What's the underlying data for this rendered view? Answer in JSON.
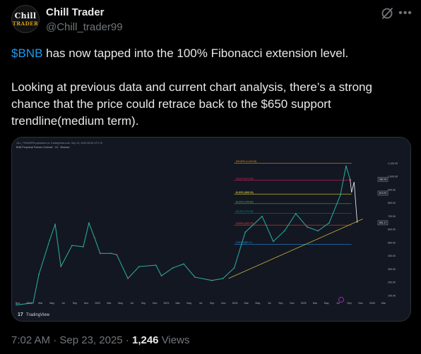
{
  "author": {
    "avatar_line1": "Chill",
    "avatar_line2": "TRADER",
    "name": "Chill Trader",
    "handle": "@Chill_trader99"
  },
  "header_icons": [
    "grok-icon",
    "more-icon"
  ],
  "tweet": {
    "cashtag": "$BNB",
    "line1_rest": " has now tapped into the 100% Fibonacci extension level.",
    "paragraph2": "Looking at previous data and current chart analysis, there’s a strong chance that the price could retrace back to the $650 support trendline(medium term)."
  },
  "meta": {
    "time": "7:02 AM",
    "sep1": " · ",
    "date": "Sep 23, 2025",
    "sep2": " · ",
    "views_count": "1,246",
    "views_label": " Views"
  },
  "chart_data": {
    "type": "line",
    "header": "BNB Perpetual Futures Contract · 1D · Binance",
    "watermark_top": "JILL_TRADERR published on TradingView.com, Sep 23, 2025 06:59 UTC+8",
    "brand": "TradingView",
    "colors": {
      "background": "#131722",
      "bull": "#26a69a",
      "bear": "#ef5350",
      "trendline": "#c8b43a",
      "fib_100": "#ff9800",
      "fib_786": "#e91e63",
      "fib_618": "#ffeb3b",
      "fib_50": "#4caf50",
      "fib_382": "#009688",
      "fib_236": "#f44336",
      "fib_0": "#2196f3"
    },
    "price_axis": [
      "1,100.00",
      "1,000.00",
      "900.00",
      "800.00",
      "700.00",
      "600.00",
      "500.00",
      "400.00",
      "300.00",
      "200.00",
      "100.00"
    ],
    "ylim": [
      80,
      1200
    ],
    "time_axis": [
      "Nov",
      "2021",
      "Mar",
      "May",
      "Jul",
      "Sep",
      "Nov",
      "2022",
      "Mar",
      "May",
      "Jul",
      "Sep",
      "Nov",
      "2023",
      "Mar",
      "May",
      "Jul",
      "Sep",
      "Nov",
      "2024",
      "Mar",
      "May",
      "Jul",
      "Sep",
      "Nov",
      "2025",
      "Mar",
      "May",
      "Jul",
      "Sep",
      "Nov",
      "2026",
      "Mar"
    ],
    "fib_levels": [
      {
        "label": "100.00% (1,102.34)",
        "value": 1102.34
      },
      {
        "label": "78.60% (973.53)",
        "value": 973.53
      },
      {
        "label": "61.80% (868.34)",
        "value": 868.34
      },
      {
        "label": "50.00% (795.89)",
        "value": 795.89
      },
      {
        "label": "38.20% (723.39)",
        "value": 723.39
      },
      {
        "label": "23.60% (633.79)",
        "value": 633.79
      },
      {
        "label": "0.00% (489.17)",
        "value": 489.17
      }
    ],
    "price_tags": [
      {
        "label": "980.44",
        "value": 980.44
      },
      {
        "label": "874.97",
        "value": 874.97
      },
      {
        "label": "651.17",
        "value": 651.17
      }
    ],
    "price_series": [
      {
        "t": "2020-10",
        "close": 30
      },
      {
        "t": "2021-01",
        "close": 45
      },
      {
        "t": "2021-02",
        "close": 260
      },
      {
        "t": "2021-04",
        "close": 520
      },
      {
        "t": "2021-05",
        "close": 640
      },
      {
        "t": "2021-06",
        "close": 320
      },
      {
        "t": "2021-08",
        "close": 480
      },
      {
        "t": "2021-10",
        "close": 470
      },
      {
        "t": "2021-11",
        "close": 650
      },
      {
        "t": "2021-12",
        "close": 540
      },
      {
        "t": "2022-01",
        "close": 420
      },
      {
        "t": "2022-03",
        "close": 420
      },
      {
        "t": "2022-04",
        "close": 410
      },
      {
        "t": "2022-06",
        "close": 230
      },
      {
        "t": "2022-08",
        "close": 320
      },
      {
        "t": "2022-11",
        "close": 330
      },
      {
        "t": "2022-12",
        "close": 250
      },
      {
        "t": "2023-02",
        "close": 310
      },
      {
        "t": "2023-04",
        "close": 340
      },
      {
        "t": "2023-06",
        "close": 240
      },
      {
        "t": "2023-09",
        "close": 215
      },
      {
        "t": "2023-11",
        "close": 230
      },
      {
        "t": "2024-01",
        "close": 310
      },
      {
        "t": "2024-03",
        "close": 580
      },
      {
        "t": "2024-06",
        "close": 700
      },
      {
        "t": "2024-08",
        "close": 510
      },
      {
        "t": "2024-10",
        "close": 590
      },
      {
        "t": "2024-12",
        "close": 720
      },
      {
        "t": "2025-02",
        "close": 620
      },
      {
        "t": "2025-04",
        "close": 590
      },
      {
        "t": "2025-06",
        "close": 650
      },
      {
        "t": "2025-08",
        "close": 860
      },
      {
        "t": "2025-09",
        "close": 1080
      },
      {
        "t": "2025-09-23",
        "close": 980
      }
    ],
    "projection": [
      {
        "t": "2025-09-23",
        "close": 980
      },
      {
        "t": "2025-10",
        "close": 880
      },
      {
        "t": "2025-10-15",
        "close": 960
      },
      {
        "t": "2025-11",
        "close": 651
      }
    ],
    "trendline": [
      {
        "t": "2023-12",
        "close": 230
      },
      {
        "t": "2025-12",
        "close": 680
      }
    ]
  }
}
